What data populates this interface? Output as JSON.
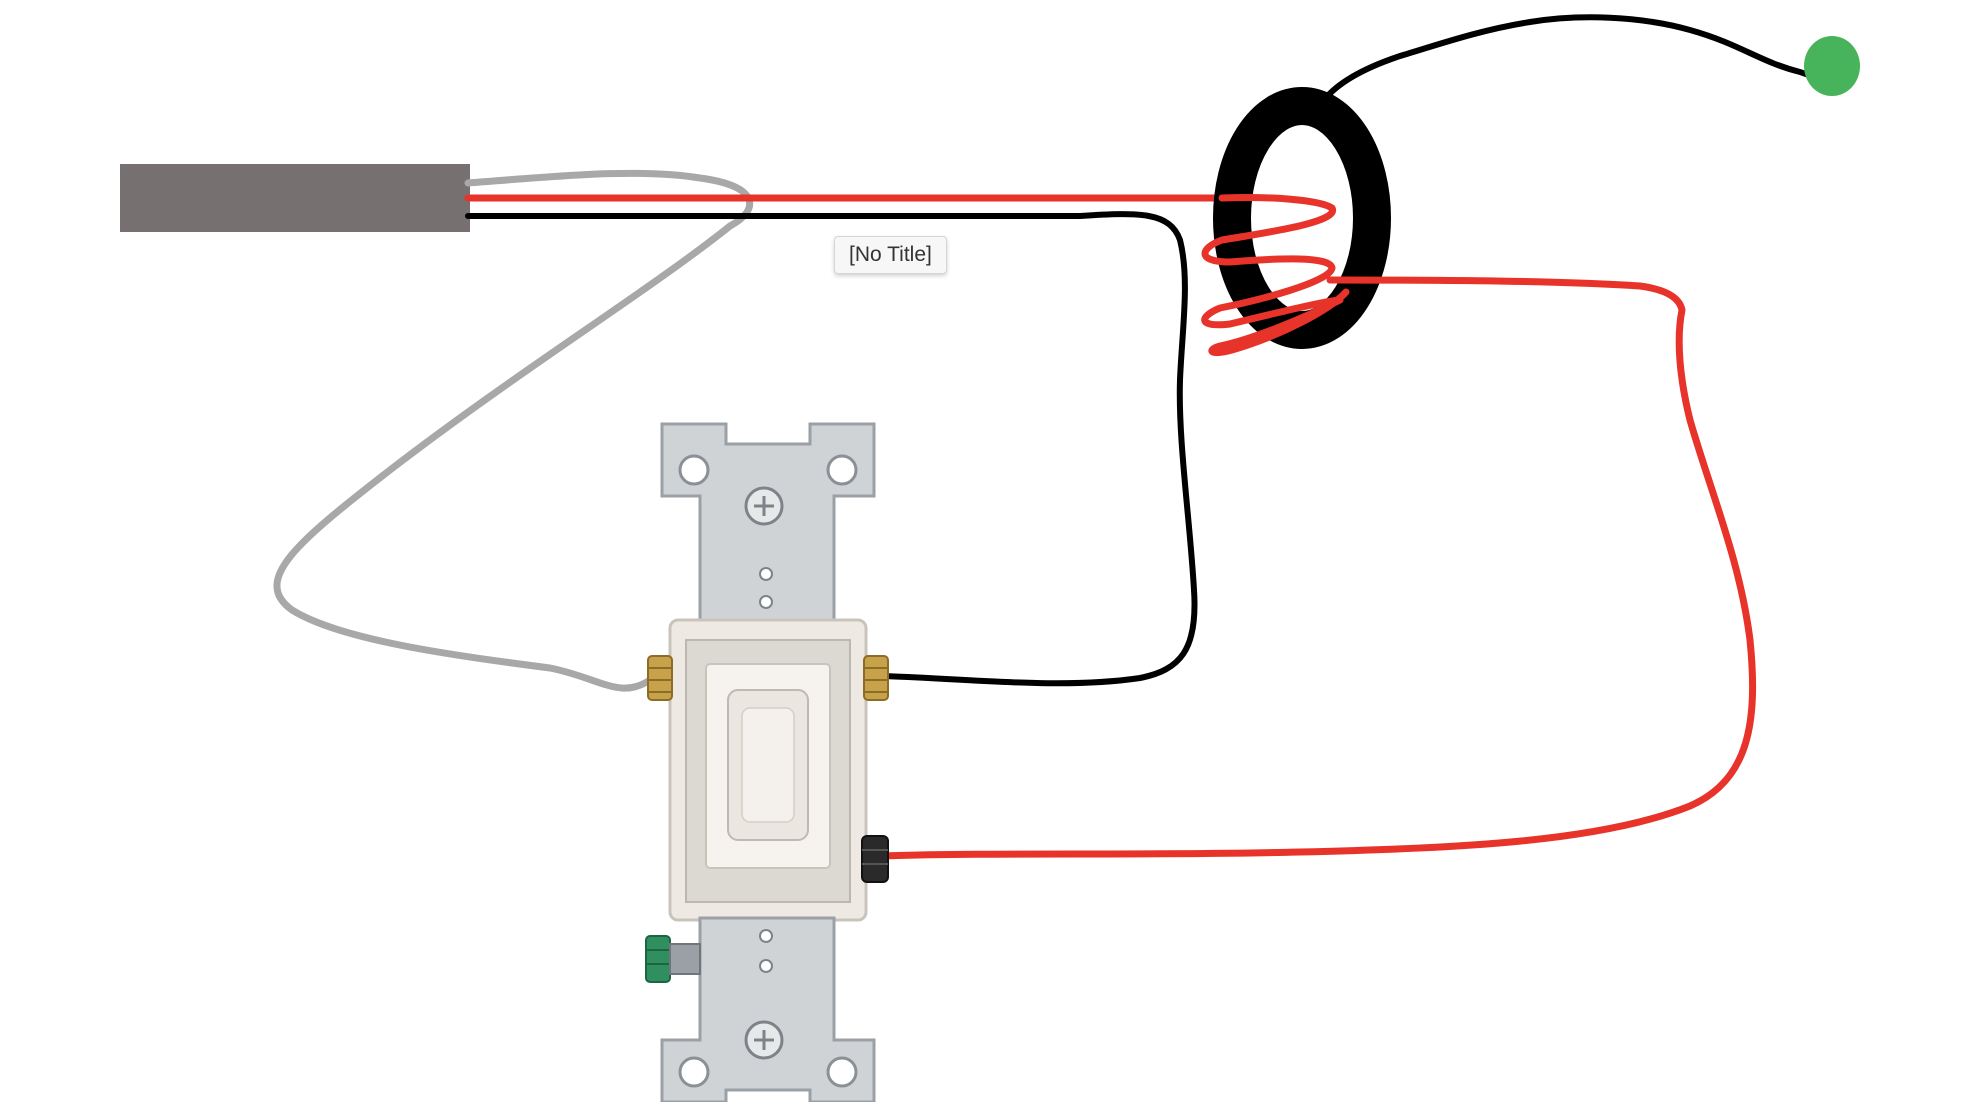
{
  "tooltip": {
    "label": "[No Title]"
  },
  "colors": {
    "cable_jacket": "#767170",
    "hot_wire": "#e8332a",
    "black_wire": "#000000",
    "neutral_wire": "#a8a8a8",
    "ground_wire": "#000000",
    "ground_terminal": "#47b35a",
    "toroid": "#000000",
    "switch_plate": "#cfd3d6",
    "switch_body": "#eeeae3",
    "terminal_brass": "#c8a24a",
    "terminal_green": "#2f8f5e",
    "terminal_dark": "#2a2a2a"
  },
  "icons": {
    "cable": "power-cable-icon",
    "current_transformer": "current-transformer-icon",
    "switch": "light-switch-icon",
    "ground": "ground-terminal-icon"
  }
}
